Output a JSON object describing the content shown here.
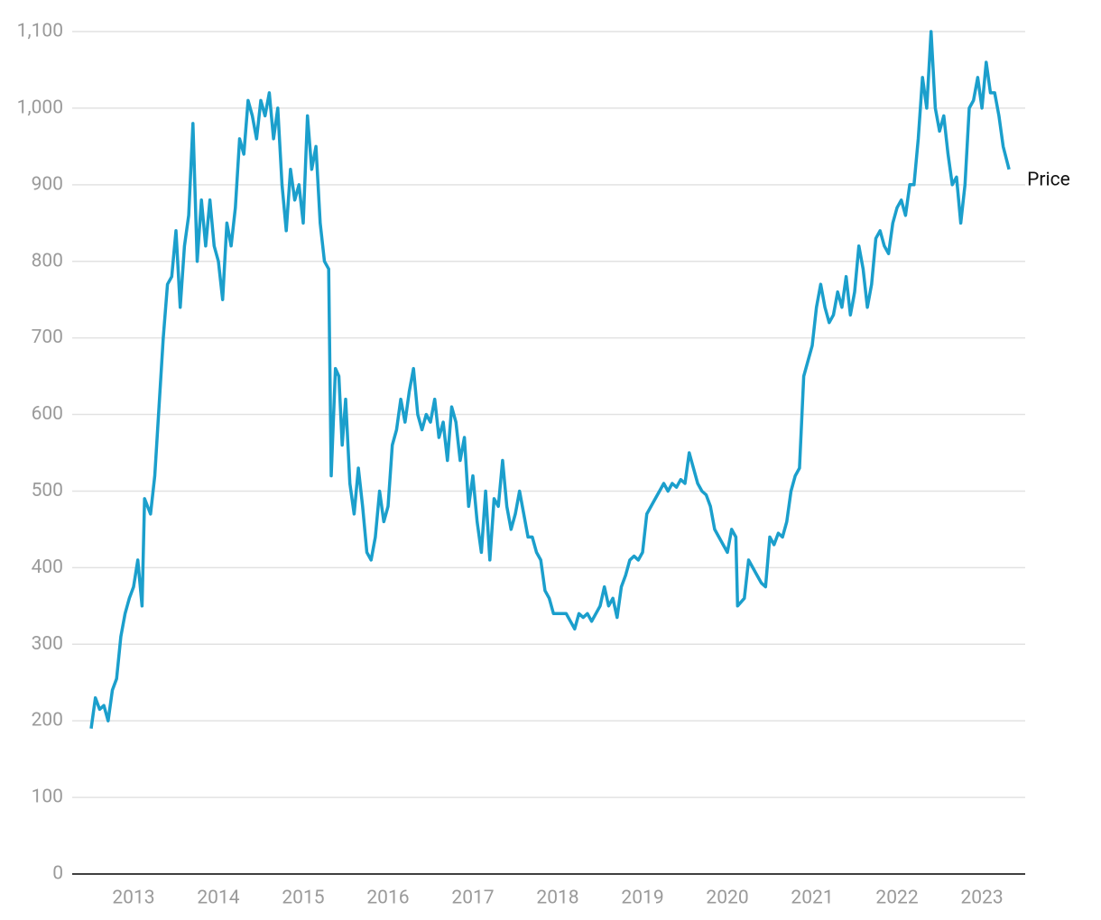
{
  "chart_data": {
    "type": "line",
    "x": [
      2012.5,
      2012.55,
      2012.6,
      2012.65,
      2012.7,
      2012.75,
      2012.8,
      2012.85,
      2012.9,
      2012.95,
      2013.0,
      2013.05,
      2013.1,
      2013.13,
      2013.2,
      2013.25,
      2013.3,
      2013.35,
      2013.4,
      2013.45,
      2013.5,
      2013.55,
      2013.6,
      2013.65,
      2013.7,
      2013.75,
      2013.8,
      2013.85,
      2013.9,
      2013.95,
      2014.0,
      2014.05,
      2014.1,
      2014.15,
      2014.2,
      2014.25,
      2014.3,
      2014.35,
      2014.4,
      2014.45,
      2014.5,
      2014.55,
      2014.6,
      2014.65,
      2014.7,
      2014.75,
      2014.8,
      2014.85,
      2014.9,
      2014.95,
      2015.0,
      2015.05,
      2015.1,
      2015.15,
      2015.2,
      2015.25,
      2015.3,
      2015.33,
      2015.38,
      2015.42,
      2015.46,
      2015.5,
      2015.55,
      2015.6,
      2015.65,
      2015.7,
      2015.75,
      2015.8,
      2015.85,
      2015.9,
      2015.95,
      2016.0,
      2016.05,
      2016.1,
      2016.15,
      2016.2,
      2016.25,
      2016.3,
      2016.35,
      2016.4,
      2016.45,
      2016.5,
      2016.55,
      2016.6,
      2016.65,
      2016.7,
      2016.75,
      2016.8,
      2016.85,
      2016.9,
      2016.95,
      2017.0,
      2017.05,
      2017.1,
      2017.15,
      2017.2,
      2017.25,
      2017.3,
      2017.35,
      2017.4,
      2017.45,
      2017.5,
      2017.55,
      2017.6,
      2017.65,
      2017.7,
      2017.75,
      2017.8,
      2017.85,
      2017.9,
      2017.95,
      2018.0,
      2018.05,
      2018.1,
      2018.15,
      2018.2,
      2018.25,
      2018.3,
      2018.35,
      2018.4,
      2018.45,
      2018.5,
      2018.55,
      2018.6,
      2018.65,
      2018.7,
      2018.75,
      2018.8,
      2018.85,
      2018.9,
      2018.95,
      2019.0,
      2019.05,
      2019.1,
      2019.15,
      2019.2,
      2019.25,
      2019.3,
      2019.35,
      2019.4,
      2019.45,
      2019.5,
      2019.55,
      2019.6,
      2019.65,
      2019.7,
      2019.75,
      2019.8,
      2019.85,
      2019.9,
      2019.95,
      2020.0,
      2020.05,
      2020.1,
      2020.12,
      2020.2,
      2020.25,
      2020.3,
      2020.35,
      2020.4,
      2020.45,
      2020.5,
      2020.55,
      2020.6,
      2020.65,
      2020.7,
      2020.75,
      2020.8,
      2020.85,
      2020.9,
      2020.95,
      2021.0,
      2021.05,
      2021.1,
      2021.15,
      2021.2,
      2021.25,
      2021.3,
      2021.35,
      2021.4,
      2021.45,
      2021.5,
      2021.55,
      2021.6,
      2021.65,
      2021.7,
      2021.75,
      2021.8,
      2021.85,
      2021.9,
      2021.95,
      2022.0,
      2022.05,
      2022.1,
      2022.15,
      2022.2,
      2022.25,
      2022.3,
      2022.35,
      2022.4,
      2022.45,
      2022.5,
      2022.55,
      2022.6,
      2022.65,
      2022.7,
      2022.75,
      2022.8,
      2022.85,
      2022.9,
      2022.95,
      2023.0,
      2023.05,
      2023.1,
      2023.15,
      2023.2,
      2023.25,
      2023.32
    ],
    "series": [
      {
        "name": "Price",
        "color": "#1b9fcc",
        "values": [
          190,
          230,
          215,
          220,
          200,
          240,
          255,
          310,
          340,
          360,
          375,
          410,
          350,
          490,
          470,
          520,
          610,
          700,
          770,
          780,
          840,
          740,
          820,
          860,
          980,
          800,
          880,
          820,
          880,
          820,
          800,
          750,
          850,
          820,
          870,
          960,
          940,
          1010,
          990,
          960,
          1010,
          990,
          1020,
          960,
          1000,
          900,
          840,
          920,
          880,
          900,
          850,
          990,
          920,
          950,
          850,
          800,
          790,
          520,
          660,
          650,
          560,
          620,
          510,
          470,
          530,
          480,
          420,
          410,
          440,
          500,
          460,
          480,
          560,
          580,
          620,
          590,
          630,
          660,
          600,
          580,
          600,
          590,
          620,
          570,
          590,
          540,
          610,
          590,
          540,
          570,
          480,
          520,
          460,
          420,
          500,
          410,
          490,
          480,
          540,
          480,
          450,
          470,
          500,
          470,
          440,
          440,
          420,
          410,
          370,
          360,
          340,
          340,
          340,
          340,
          330,
          320,
          340,
          335,
          340,
          330,
          340,
          350,
          375,
          350,
          360,
          335,
          375,
          390,
          410,
          415,
          410,
          420,
          470,
          480,
          490,
          500,
          510,
          500,
          510,
          505,
          515,
          510,
          550,
          530,
          510,
          500,
          495,
          480,
          450,
          440,
          430,
          420,
          450,
          440,
          350,
          360,
          410,
          400,
          390,
          380,
          375,
          440,
          430,
          445,
          440,
          460,
          500,
          520,
          530,
          650,
          670,
          690,
          740,
          770,
          740,
          720,
          730,
          760,
          740,
          780,
          730,
          760,
          820,
          790,
          740,
          770,
          830,
          840,
          820,
          810,
          850,
          870,
          880,
          860,
          900,
          900,
          960,
          1040,
          1000,
          1100,
          1000,
          970,
          990,
          940,
          900,
          910,
          850,
          900,
          1000,
          1010,
          1040,
          1000,
          1060,
          1020,
          1020,
          990,
          950,
          920
        ]
      }
    ],
    "xlim": [
      2012.277,
      2023.51
    ],
    "xticks": [
      2013,
      2014,
      2015,
      2016,
      2017,
      2018,
      2019,
      2020,
      2021,
      2022,
      2023
    ],
    "ylim": [
      0,
      1100
    ],
    "yticks": [
      0,
      100,
      200,
      300,
      400,
      500,
      600,
      700,
      800,
      900,
      {
        "value": 1000,
        "label": "1,000"
      },
      {
        "value": 1100,
        "label": "1,100"
      }
    ],
    "grid": true
  }
}
